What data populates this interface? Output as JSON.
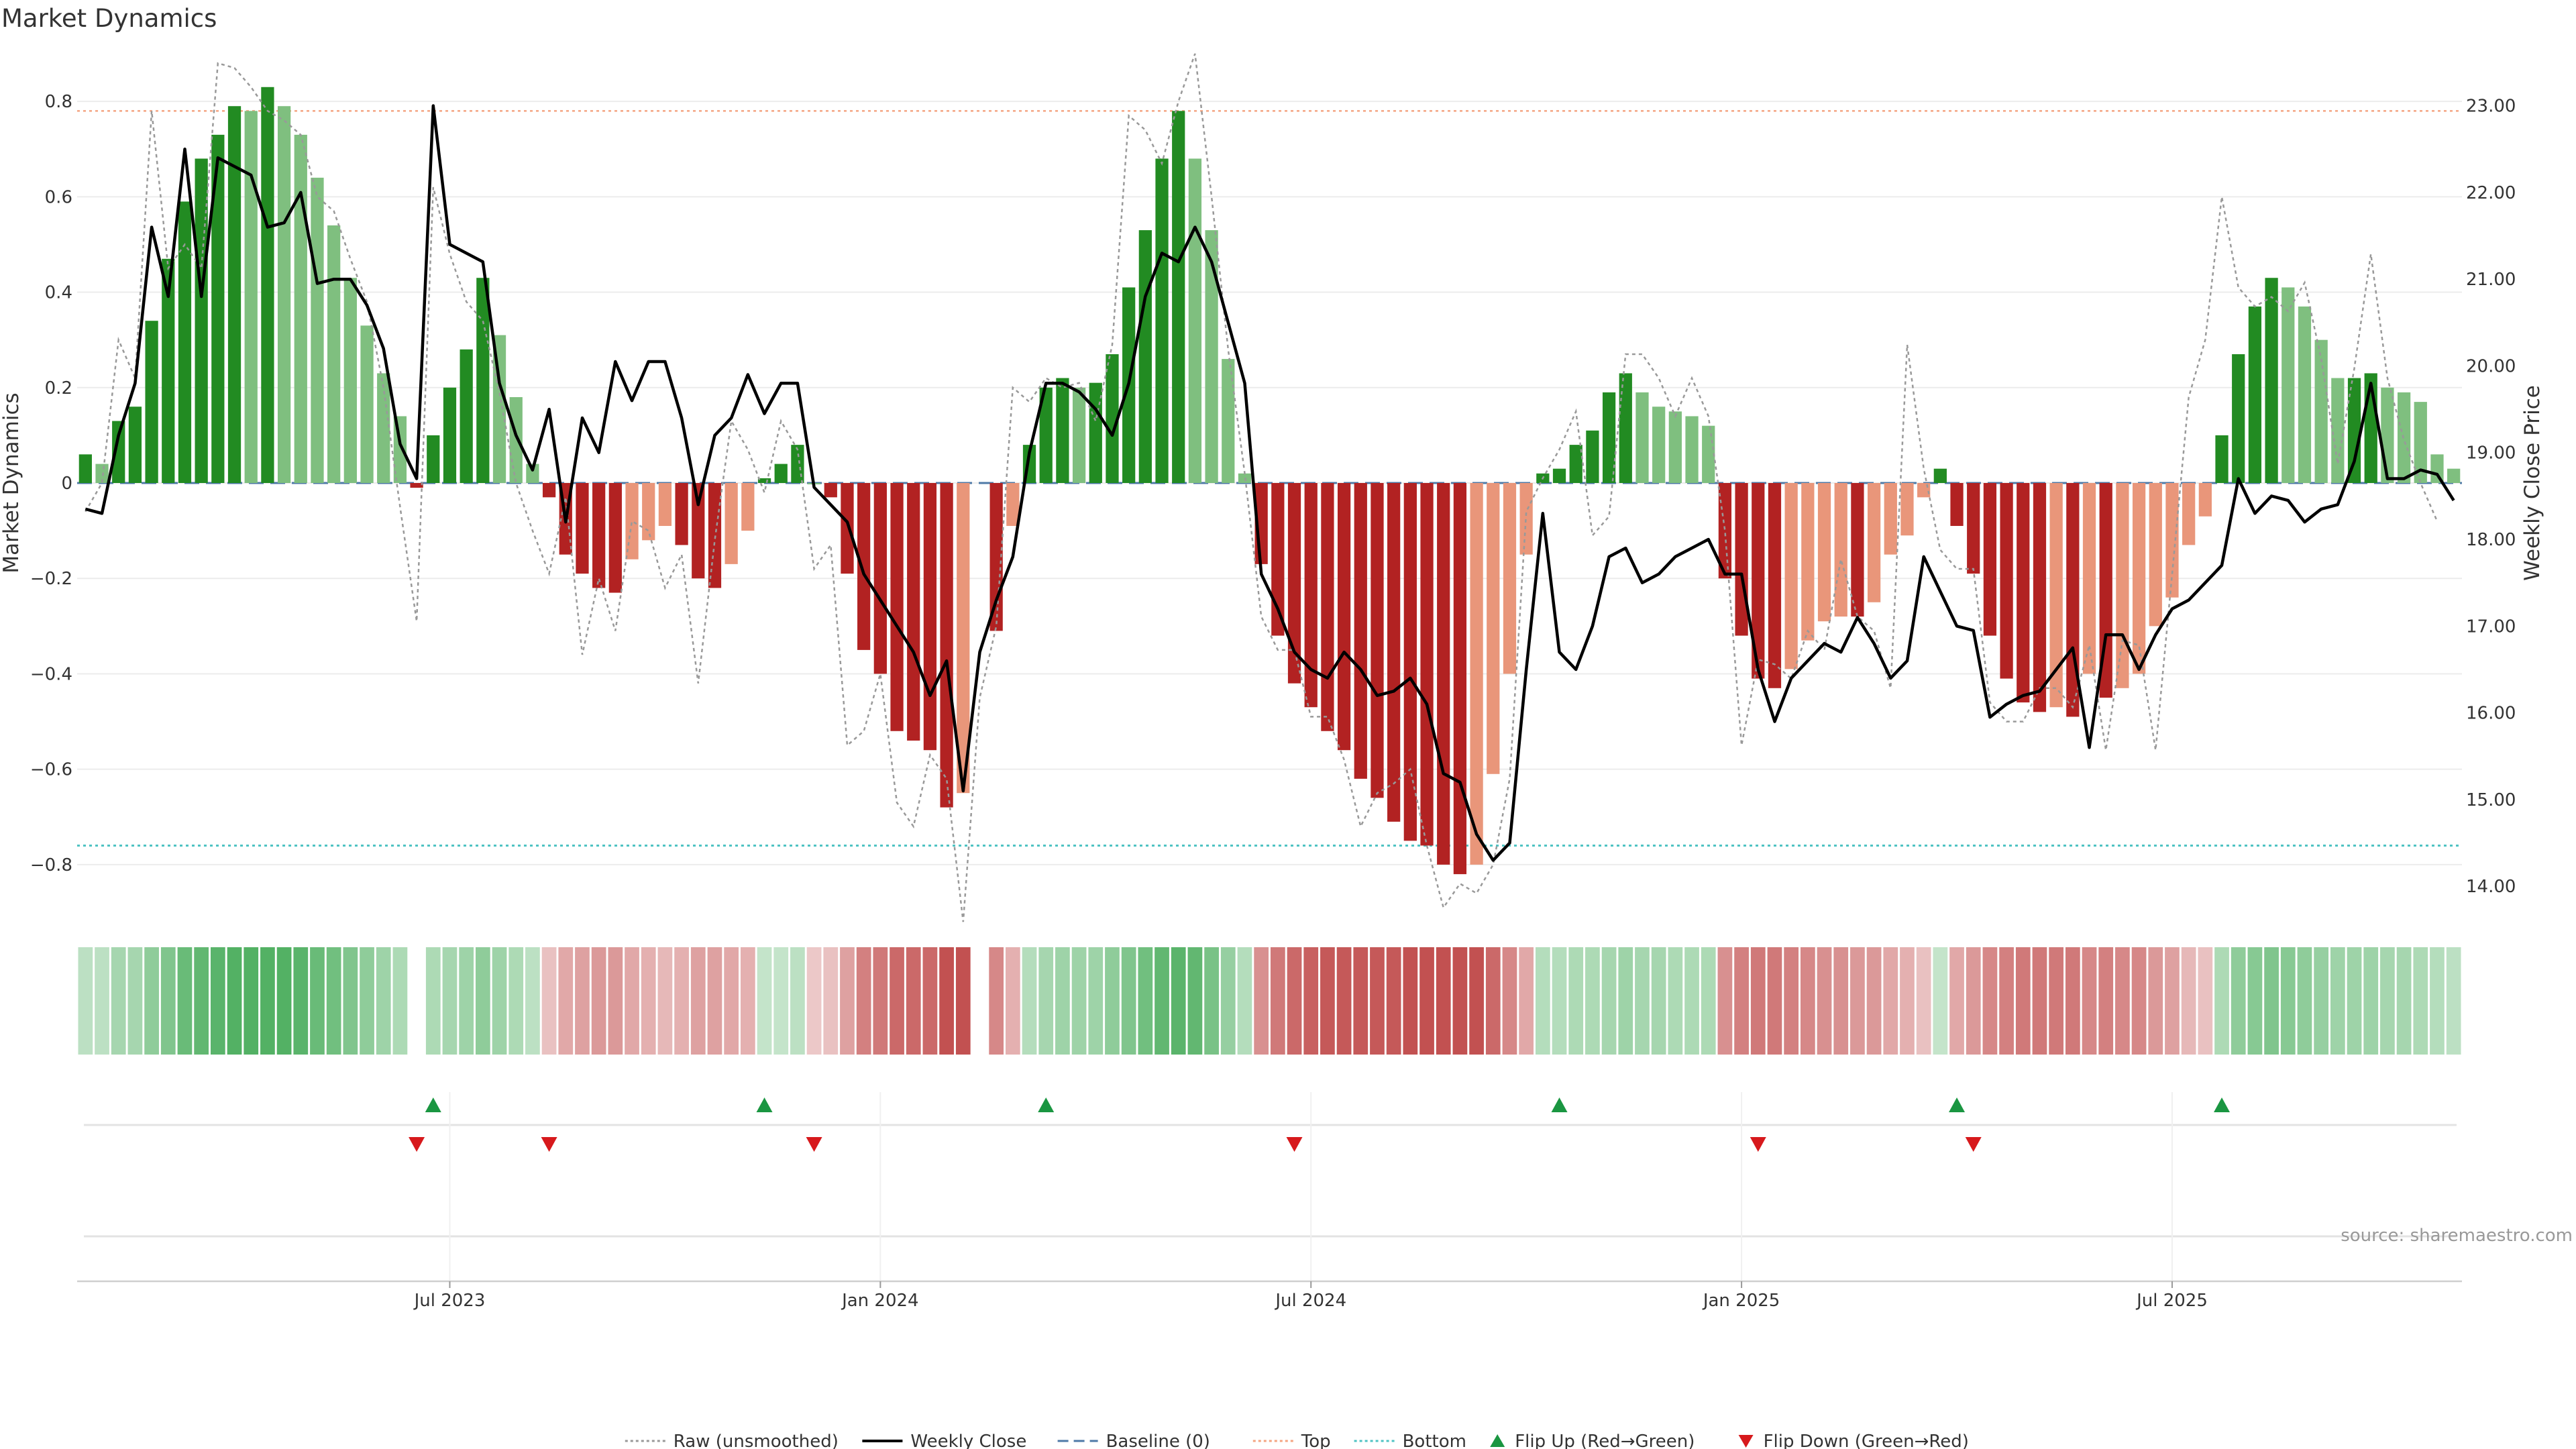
{
  "title": "Market Dynamics",
  "source": "source: sharemaestro.com",
  "chart_data": {
    "type": "bar",
    "title": "Market Dynamics",
    "ylabel_left": "Market Dynamics",
    "ylabel_right": "Weekly Close Price",
    "ylim_left": [
      -0.9,
      0.9
    ],
    "ylim_right": [
      13.7,
      23.6
    ],
    "left_ticks": [
      -0.8,
      -0.6,
      -0.4,
      -0.2,
      0,
      0.2,
      0.4,
      0.6,
      0.8
    ],
    "left_tick_labels": [
      "−0.8",
      "−0.6",
      "−0.4",
      "−0.2",
      "0",
      "0.2",
      "0.4",
      "0.6",
      "0.8"
    ],
    "right_ticks": [
      14,
      15,
      16,
      17,
      18,
      19,
      20,
      21,
      22,
      23
    ],
    "right_tick_labels": [
      "14.00",
      "15.00",
      "16.00",
      "17.00",
      "18.00",
      "19.00",
      "20.00",
      "21.00",
      "22.00",
      "23.00"
    ],
    "x_tick_labels": [
      "Jul 2023",
      "Jan 2024",
      "Jul 2024",
      "Jan 2025",
      "Jul 2025"
    ],
    "x_tick_weeks": [
      22,
      48,
      74,
      100,
      126
    ],
    "n_weeks": 144,
    "top_level": 0.78,
    "bottom_level": -0.76,
    "baseline": 0,
    "grid": true,
    "legend_position": "bottom-center",
    "bar_values": [
      0.06,
      0.04,
      0.13,
      0.16,
      0.34,
      0.47,
      0.59,
      0.68,
      0.73,
      0.79,
      0.78,
      0.83,
      0.79,
      0.73,
      0.64,
      0.54,
      0.43,
      0.33,
      0.23,
      0.14,
      -0.01,
      0.1,
      0.2,
      0.28,
      0.43,
      0.31,
      0.18,
      0.04,
      -0.03,
      -0.15,
      -0.19,
      -0.22,
      -0.23,
      -0.16,
      -0.12,
      -0.09,
      -0.13,
      -0.2,
      -0.22,
      -0.17,
      -0.1,
      0.01,
      0.04,
      0.08,
      0.0,
      -0.03,
      -0.19,
      -0.35,
      -0.4,
      -0.52,
      -0.54,
      -0.56,
      -0.68,
      -0.65,
      null,
      -0.31,
      -0.09,
      0.08,
      0.2,
      0.22,
      0.2,
      0.21,
      0.27,
      0.41,
      0.53,
      0.68,
      0.78,
      0.68,
      0.53,
      0.26,
      0.02,
      -0.17,
      -0.32,
      -0.42,
      -0.47,
      -0.52,
      -0.56,
      -0.62,
      -0.66,
      -0.71,
      -0.75,
      -0.76,
      -0.8,
      -0.82,
      -0.8,
      -0.61,
      -0.4,
      -0.15,
      0.02,
      0.03,
      0.08,
      0.11,
      0.19,
      0.23,
      0.19,
      0.16,
      0.15,
      0.14,
      0.12,
      -0.2,
      -0.32,
      -0.41,
      -0.43,
      -0.39,
      -0.33,
      -0.29,
      -0.28,
      -0.28,
      -0.25,
      -0.15,
      -0.11,
      -0.03,
      0.03,
      -0.09,
      -0.19,
      -0.32,
      -0.41,
      -0.46,
      -0.48,
      -0.47,
      -0.49,
      -0.4,
      -0.45,
      -0.43,
      -0.4,
      -0.3,
      -0.24,
      -0.13,
      -0.07,
      0.1,
      0.27,
      0.37,
      0.43,
      0.41,
      0.37,
      0.3,
      0.22,
      0.22,
      0.23,
      0.2,
      0.19,
      0.17,
      0.06,
      0.03
    ],
    "weekly_close": [
      18.35,
      18.3,
      19.2,
      19.8,
      21.6,
      20.8,
      22.5,
      20.8,
      22.4,
      22.3,
      22.2,
      21.6,
      21.65,
      22.0,
      20.95,
      21.0,
      21.0,
      20.7,
      20.2,
      19.1,
      18.7,
      23.0,
      21.4,
      21.3,
      21.2,
      19.8,
      19.2,
      18.8,
      19.5,
      18.2,
      19.4,
      19.0,
      20.05,
      19.6,
      20.05,
      20.05,
      19.4,
      18.4,
      19.2,
      19.4,
      19.9,
      19.45,
      19.8,
      19.8,
      18.6,
      18.4,
      18.2,
      17.6,
      17.3,
      17.0,
      16.7,
      16.2,
      16.6,
      15.1,
      16.7,
      17.3,
      17.8,
      19.0,
      19.8,
      19.8,
      19.7,
      19.5,
      19.2,
      19.8,
      20.8,
      21.3,
      21.2,
      21.6,
      21.2,
      20.5,
      19.8,
      17.6,
      17.2,
      16.7,
      16.5,
      16.4,
      16.7,
      16.5,
      16.2,
      16.25,
      16.4,
      16.1,
      15.3,
      15.2,
      14.6,
      14.3,
      14.5,
      16.5,
      18.3,
      16.7,
      16.5,
      17.0,
      17.8,
      17.9,
      17.5,
      17.6,
      17.8,
      17.9,
      18.0,
      17.6,
      17.6,
      16.5,
      15.9,
      16.4,
      16.6,
      16.8,
      16.7,
      17.1,
      16.8,
      16.4,
      16.6,
      17.8,
      17.4,
      17.0,
      16.95,
      15.95,
      16.1,
      16.2,
      16.25,
      16.5,
      16.75,
      15.6,
      16.9,
      16.9,
      16.5,
      16.9,
      17.2,
      17.3,
      17.5,
      17.7,
      18.7,
      18.3,
      18.5,
      18.45,
      18.2,
      18.35,
      18.4,
      18.9,
      19.8,
      18.7,
      18.7,
      18.8,
      18.75,
      18.45
    ],
    "raw_values": [
      -0.06,
      0.0,
      0.3,
      0.22,
      0.78,
      0.45,
      0.5,
      0.45,
      0.88,
      0.87,
      0.83,
      0.78,
      0.76,
      0.73,
      0.6,
      0.57,
      0.47,
      0.38,
      0.2,
      -0.05,
      -0.29,
      0.62,
      0.48,
      0.38,
      0.34,
      0.19,
      0.0,
      -0.1,
      -0.19,
      -0.03,
      -0.36,
      -0.2,
      -0.31,
      -0.08,
      -0.1,
      -0.22,
      -0.15,
      -0.42,
      -0.12,
      0.13,
      0.07,
      -0.02,
      0.13,
      0.07,
      -0.18,
      -0.13,
      -0.55,
      -0.52,
      -0.4,
      -0.67,
      -0.72,
      -0.57,
      -0.62,
      -0.92,
      -0.45,
      -0.3,
      0.2,
      0.17,
      0.22,
      0.2,
      0.21,
      0.13,
      0.29,
      0.77,
      0.74,
      0.67,
      0.8,
      0.9,
      0.6,
      0.28,
      0.02,
      -0.28,
      -0.35,
      -0.35,
      -0.49,
      -0.49,
      -0.58,
      -0.72,
      -0.65,
      -0.63,
      -0.6,
      -0.76,
      -0.89,
      -0.84,
      -0.86,
      -0.8,
      -0.62,
      -0.06,
      0.01,
      0.07,
      0.15,
      -0.11,
      -0.07,
      0.27,
      0.27,
      0.22,
      0.14,
      0.22,
      0.14,
      -0.1,
      -0.55,
      -0.37,
      -0.38,
      -0.41,
      -0.31,
      -0.35,
      -0.16,
      -0.28,
      -0.31,
      -0.43,
      0.29,
      0.03,
      -0.14,
      -0.18,
      -0.18,
      -0.46,
      -0.5,
      -0.5,
      -0.43,
      -0.43,
      -0.47,
      -0.34,
      -0.56,
      -0.33,
      -0.34,
      -0.56,
      -0.19,
      0.18,
      0.3,
      0.6,
      0.41,
      0.37,
      0.39,
      0.36,
      0.42,
      0.26,
      0.04,
      0.24,
      0.48,
      0.22,
      0.09,
      0.0,
      -0.08
    ],
    "heat_strip": [
      0.25,
      0.25,
      0.4,
      0.4,
      0.55,
      0.65,
      0.8,
      0.85,
      0.9,
      0.95,
      0.95,
      0.95,
      0.95,
      0.9,
      0.8,
      0.75,
      0.65,
      0.55,
      0.45,
      0.35,
      null,
      0.35,
      0.4,
      0.45,
      0.55,
      0.45,
      0.35,
      0.25,
      -0.2,
      -0.35,
      -0.4,
      -0.45,
      -0.45,
      -0.35,
      -0.3,
      -0.25,
      -0.3,
      -0.4,
      -0.4,
      -0.35,
      -0.3,
      0.2,
      0.2,
      0.25,
      -0.15,
      -0.2,
      -0.4,
      -0.6,
      -0.65,
      -0.75,
      -0.75,
      -0.75,
      -0.9,
      -0.9,
      null,
      -0.55,
      -0.3,
      0.3,
      0.4,
      0.45,
      0.45,
      0.45,
      0.55,
      0.65,
      0.75,
      0.85,
      0.9,
      0.85,
      0.7,
      0.5,
      0.3,
      -0.5,
      -0.65,
      -0.75,
      -0.8,
      -0.85,
      -0.85,
      -0.85,
      -0.85,
      -0.85,
      -0.9,
      -0.9,
      -0.9,
      -0.9,
      -0.9,
      -0.75,
      -0.55,
      -0.35,
      0.3,
      0.3,
      0.35,
      0.35,
      0.4,
      0.45,
      0.4,
      0.4,
      0.35,
      0.35,
      0.35,
      -0.5,
      -0.6,
      -0.65,
      -0.65,
      -0.6,
      -0.55,
      -0.5,
      -0.5,
      -0.45,
      -0.45,
      -0.35,
      -0.3,
      -0.2,
      0.2,
      -0.35,
      -0.45,
      -0.55,
      -0.6,
      -0.65,
      -0.65,
      -0.65,
      -0.65,
      -0.55,
      -0.6,
      -0.55,
      -0.55,
      -0.45,
      -0.4,
      -0.25,
      -0.2,
      0.35,
      0.55,
      0.6,
      0.65,
      0.6,
      0.55,
      0.5,
      0.45,
      0.45,
      0.45,
      0.4,
      0.4,
      0.35,
      0.3,
      0.25
    ],
    "flip_up_weeks": [
      21,
      41,
      58,
      89,
      113,
      129
    ],
    "flip_down_weeks": [
      20,
      28,
      44,
      73,
      101,
      114
    ],
    "legend": [
      {
        "label": "Raw (unsmoothed)",
        "style": "dotted-line",
        "color": "#999999"
      },
      {
        "label": "Weekly Close",
        "style": "solid-line",
        "color": "#000000"
      },
      {
        "label": "Baseline (0)",
        "style": "dashed-line",
        "color": "#4e79a7"
      },
      {
        "label": "Top",
        "style": "dotted-line",
        "color": "#f4a582"
      },
      {
        "label": "Bottom",
        "style": "dotted-line",
        "color": "#4fc3c3"
      },
      {
        "label": "Flip Up (Red→Green)",
        "style": "triangle-up",
        "color": "#1a9641"
      },
      {
        "label": "Flip Down (Green→Red)",
        "style": "triangle-down",
        "color": "#d7191c"
      }
    ],
    "colors": {
      "strong_green": "#228b22",
      "light_green": "#7fbf7f",
      "strong_red": "#b22222",
      "light_red": "#e9967a",
      "top_line": "#f4a582",
      "bottom_line": "#4fc3c3",
      "baseline": "#4e79a7",
      "raw_line": "#999999",
      "close_line": "#000000",
      "flip_up": "#1a9641",
      "flip_down": "#d7191c"
    }
  }
}
